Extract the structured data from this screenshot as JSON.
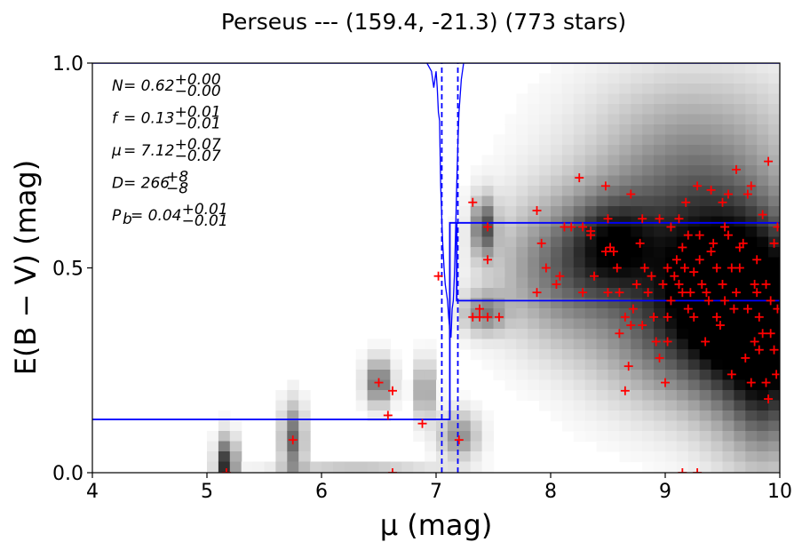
{
  "chart_data": {
    "type": "scatter",
    "title": "Perseus --- (159.4, -21.3) (773 stars)",
    "xlabel": "μ (mag)",
    "ylabel": "E(B − V) (mag)",
    "xlim": [
      4,
      10
    ],
    "ylim": [
      0,
      1
    ],
    "xticks": [
      "4",
      "5",
      "6",
      "7",
      "8",
      "9",
      "10"
    ],
    "yticks": [
      "0.0",
      "0.5",
      "1.0"
    ],
    "grid": false,
    "annotations": [
      {
        "lhs": "N = 0.62",
        "sup": "+0.00",
        "sub": "−0.00"
      },
      {
        "lhs": "f = 0.13",
        "sup": "+0.01",
        "sub": "−0.01"
      },
      {
        "lhs": "μ = 7.12",
        "sup": "+0.07",
        "sub": "−0.07"
      },
      {
        "lhs": "D = 266",
        "sup": "+8",
        "sub": "−8"
      },
      {
        "lhs": "P_b = 0.04",
        "sup": "+0.01",
        "sub": "−0.01"
      }
    ],
    "colors": {
      "density": "#000000",
      "points": "#ff0000",
      "model": "#0000ff"
    },
    "density_blobs": [
      {
        "x": 5.17,
        "y": 0.02,
        "sx": 0.06,
        "sy": 0.045,
        "a": 0.85
      },
      {
        "x": 5.75,
        "y": 0.08,
        "sx": 0.07,
        "sy": 0.06,
        "a": 0.6
      },
      {
        "x": 6.5,
        "y": 0.22,
        "sx": 0.08,
        "sy": 0.04,
        "a": 0.6
      },
      {
        "x": 6.9,
        "y": 0.2,
        "sx": 0.06,
        "sy": 0.05,
        "a": 0.45
      },
      {
        "x": 7.2,
        "y": 0.09,
        "sx": 0.12,
        "sy": 0.04,
        "a": 0.45
      },
      {
        "x": 6.3,
        "y": 0.0,
        "sx": 0.5,
        "sy": 0.015,
        "a": 0.35
      },
      {
        "x": 7.42,
        "y": 0.6,
        "sx": 0.07,
        "sy": 0.05,
        "a": 0.65
      },
      {
        "x": 7.42,
        "y": 0.39,
        "sx": 0.13,
        "sy": 0.035,
        "a": 0.45
      },
      {
        "x": 8.1,
        "y": 0.5,
        "sx": 0.4,
        "sy": 0.12,
        "a": 0.5
      },
      {
        "x": 8.55,
        "y": 0.56,
        "sx": 0.25,
        "sy": 0.08,
        "a": 0.45
      },
      {
        "x": 9.6,
        "y": 0.43,
        "sx": 0.5,
        "sy": 0.14,
        "a": 0.85
      },
      {
        "x": 9.2,
        "y": 0.62,
        "sx": 0.6,
        "sy": 0.15,
        "a": 0.55
      },
      {
        "x": 9.8,
        "y": 0.3,
        "sx": 0.35,
        "sy": 0.18,
        "a": 0.55
      },
      {
        "x": 9.0,
        "y": 0.32,
        "sx": 0.5,
        "sy": 0.12,
        "a": 0.35
      },
      {
        "x": 9.3,
        "y": 0.85,
        "sx": 0.7,
        "sy": 0.12,
        "a": 0.2
      },
      {
        "x": 9.9,
        "y": 0.2,
        "sx": 0.2,
        "sy": 0.12,
        "a": 0.3
      }
    ],
    "points": [
      [
        5.17,
        0.0
      ],
      [
        5.75,
        0.08
      ],
      [
        6.5,
        0.22
      ],
      [
        6.62,
        0.2
      ],
      [
        6.58,
        0.14
      ],
      [
        6.88,
        0.12
      ],
      [
        6.62,
        0.0
      ],
      [
        7.02,
        0.48
      ],
      [
        7.2,
        0.08
      ],
      [
        7.32,
        0.66
      ],
      [
        7.32,
        0.38
      ],
      [
        7.38,
        0.38
      ],
      [
        7.38,
        0.4
      ],
      [
        7.45,
        0.38
      ],
      [
        7.45,
        0.6
      ],
      [
        7.45,
        0.52
      ],
      [
        7.55,
        0.38
      ],
      [
        7.88,
        0.64
      ],
      [
        7.88,
        0.44
      ],
      [
        7.92,
        0.56
      ],
      [
        7.96,
        0.5
      ],
      [
        8.05,
        0.46
      ],
      [
        8.08,
        0.48
      ],
      [
        8.12,
        0.6
      ],
      [
        8.18,
        0.6
      ],
      [
        8.25,
        0.72
      ],
      [
        8.28,
        0.6
      ],
      [
        8.28,
        0.44
      ],
      [
        8.35,
        0.58
      ],
      [
        8.35,
        0.59
      ],
      [
        8.38,
        0.48
      ],
      [
        8.48,
        0.7
      ],
      [
        8.5,
        0.62
      ],
      [
        8.48,
        0.54
      ],
      [
        8.5,
        0.44
      ],
      [
        8.52,
        0.55
      ],
      [
        8.55,
        0.54
      ],
      [
        8.58,
        0.5
      ],
      [
        8.6,
        0.44
      ],
      [
        8.6,
        0.34
      ],
      [
        8.65,
        0.2
      ],
      [
        8.65,
        0.38
      ],
      [
        8.68,
        0.26
      ],
      [
        8.7,
        0.36
      ],
      [
        8.72,
        0.4
      ],
      [
        8.7,
        0.68
      ],
      [
        8.75,
        0.46
      ],
      [
        8.78,
        0.56
      ],
      [
        8.8,
        0.62
      ],
      [
        8.8,
        0.36
      ],
      [
        8.82,
        0.5
      ],
      [
        8.85,
        0.44
      ],
      [
        8.88,
        0.48
      ],
      [
        8.9,
        0.38
      ],
      [
        8.92,
        0.32
      ],
      [
        8.95,
        0.28
      ],
      [
        8.95,
        0.62
      ],
      [
        8.98,
        0.46
      ],
      [
        9.0,
        0.22
      ],
      [
        9.02,
        0.32
      ],
      [
        9.02,
        0.38
      ],
      [
        9.02,
        0.5
      ],
      [
        9.05,
        0.42
      ],
      [
        9.05,
        0.6
      ],
      [
        9.08,
        0.48
      ],
      [
        9.1,
        0.52
      ],
      [
        9.12,
        0.62
      ],
      [
        9.12,
        0.46
      ],
      [
        9.15,
        0.55
      ],
      [
        9.15,
        0.44
      ],
      [
        9.17,
        0.5
      ],
      [
        9.18,
        0.66
      ],
      [
        9.2,
        0.4
      ],
      [
        9.2,
        0.58
      ],
      [
        9.22,
        0.44
      ],
      [
        9.25,
        0.38
      ],
      [
        9.25,
        0.49
      ],
      [
        9.28,
        0.7
      ],
      [
        9.3,
        0.52
      ],
      [
        9.3,
        0.58
      ],
      [
        9.32,
        0.46
      ],
      [
        9.35,
        0.32
      ],
      [
        9.36,
        0.44
      ],
      [
        9.38,
        0.42
      ],
      [
        9.4,
        0.69
      ],
      [
        9.4,
        0.54
      ],
      [
        9.42,
        0.56
      ],
      [
        9.45,
        0.38
      ],
      [
        9.45,
        0.5
      ],
      [
        9.48,
        0.36
      ],
      [
        9.5,
        0.66
      ],
      [
        9.5,
        0.46
      ],
      [
        9.52,
        0.6
      ],
      [
        9.52,
        0.42
      ],
      [
        9.55,
        0.58
      ],
      [
        9.55,
        0.68
      ],
      [
        9.58,
        0.24
      ],
      [
        9.58,
        0.5
      ],
      [
        9.6,
        0.4
      ],
      [
        9.62,
        0.74
      ],
      [
        9.62,
        0.44
      ],
      [
        9.65,
        0.55
      ],
      [
        9.65,
        0.5
      ],
      [
        9.68,
        0.56
      ],
      [
        9.7,
        0.28
      ],
      [
        9.72,
        0.4
      ],
      [
        9.72,
        0.68
      ],
      [
        9.75,
        0.7
      ],
      [
        9.75,
        0.22
      ],
      [
        9.78,
        0.46
      ],
      [
        9.78,
        0.32
      ],
      [
        9.8,
        0.52
      ],
      [
        9.8,
        0.44
      ],
      [
        9.82,
        0.38
      ],
      [
        9.82,
        0.3
      ],
      [
        9.85,
        0.34
      ],
      [
        9.85,
        0.63
      ],
      [
        9.88,
        0.22
      ],
      [
        9.88,
        0.46
      ],
      [
        9.9,
        0.18
      ],
      [
        9.9,
        0.76
      ],
      [
        9.92,
        0.42
      ],
      [
        9.92,
        0.34
      ],
      [
        9.95,
        0.56
      ],
      [
        9.95,
        0.3
      ],
      [
        9.97,
        0.24
      ],
      [
        9.98,
        0.4
      ],
      [
        9.98,
        0.6
      ],
      [
        9.15,
        0.0
      ],
      [
        9.28,
        0.0
      ]
    ],
    "model_line": {
      "x": [
        4.0,
        7.12,
        7.12,
        7.18,
        7.18,
        10.0
      ],
      "y": [
        0.13,
        0.13,
        0.61,
        0.61,
        0.61,
        0.61
      ]
    },
    "model_steps": [
      {
        "x0": 4.0,
        "x1": 7.12,
        "y": 0.13
      },
      {
        "x0": 7.12,
        "x1": 7.12,
        "y0": 0.13,
        "y1": 0.61
      },
      {
        "x0": 7.12,
        "x1": 10.0,
        "y": 0.61
      }
    ],
    "second_step": {
      "x0": 7.18,
      "x1": 10.0,
      "y": 0.42,
      "ydrop": 0.42
    },
    "posterior_curve": {
      "x": [
        7.0,
        7.01,
        7.02,
        7.03,
        7.04,
        7.05,
        7.06,
        7.07,
        7.08,
        7.09,
        7.1,
        7.11,
        7.12,
        7.13,
        7.14,
        7.15,
        7.16,
        7.17,
        7.18,
        7.19,
        7.2,
        7.22,
        7.24
      ],
      "y": [
        0.98,
        0.94,
        0.88,
        0.86,
        0.7,
        0.62,
        0.55,
        0.5,
        0.46,
        0.44,
        0.42,
        0.38,
        0.35,
        0.33,
        0.4,
        0.42,
        0.48,
        0.58,
        0.7,
        0.8,
        0.88,
        0.96,
        1.0
      ]
    },
    "posterior_top": {
      "x": [
        6.92,
        6.96,
        6.98,
        7.0
      ],
      "y": [
        1.0,
        0.98,
        0.94,
        0.98
      ]
    },
    "dashed_lines": [
      7.05,
      7.19
    ]
  }
}
